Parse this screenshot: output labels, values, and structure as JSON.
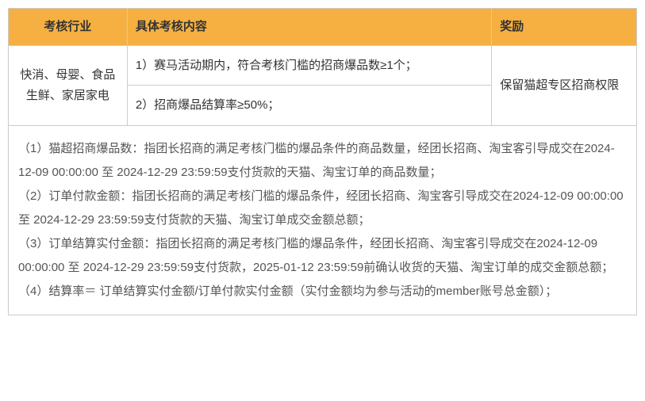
{
  "table": {
    "headers": {
      "col1": "考核行业",
      "col2": "具体考核内容",
      "col3": "奖励"
    },
    "body": {
      "industry": "快消、母婴、食品生鲜、家居家电",
      "content1": "1）赛马活动期内，符合考核门槛的招商爆品数≥1个；",
      "content2": "2）招商爆品结算率≥50%；",
      "reward": "保留猫超专区招商权限"
    },
    "notes": {
      "n1": "（1）猫超招商爆品数：指团长招商的满足考核门槛的爆品条件的商品数量，经团长招商、淘宝客引导成交在2024-12-09 00:00:00 至 2024-12-29 23:59:59支付货款的天猫、淘宝订单的商品数量；",
      "n2": "（2）订单付款金额：指团长招商的满足考核门槛的爆品条件，经团长招商、淘宝客引导成交在2024-12-09 00:00:00 至 2024-12-29 23:59:59支付货款的天猫、淘宝订单成交金额总额；",
      "n3": "（3）订单结算实付金额：指团长招商的满足考核门槛的爆品条件，经团长招商、淘宝客引导成交在2024-12-09 00:00:00 至 2024-12-29 23:59:59支付货款，2025-01-12 23:59:59前确认收货的天猫、淘宝订单的成交金额总额；",
      "n4": "（4）结算率＝ 订单结算实付金额/订单付款实付金额（实付金额均为参与活动的member账号总金额）；"
    }
  }
}
